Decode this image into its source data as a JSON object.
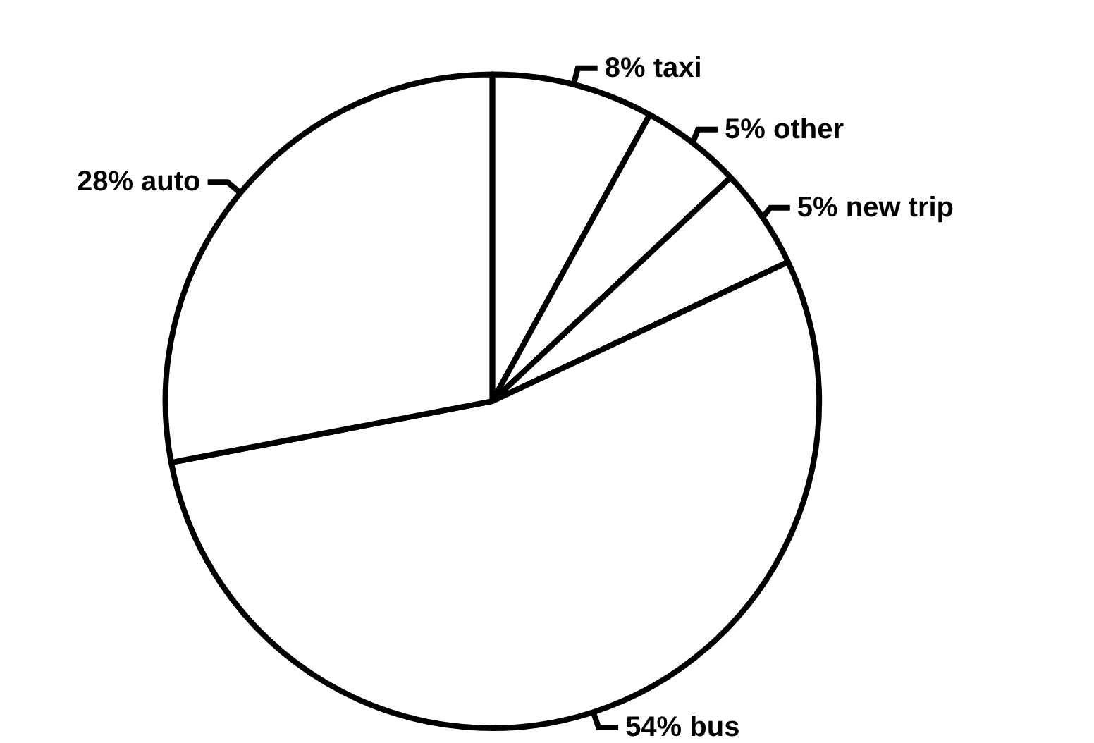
{
  "chart_data": {
    "type": "pie",
    "categories": [
      "taxi",
      "other",
      "new trip",
      "bus",
      "auto"
    ],
    "values": [
      8,
      5,
      5,
      54,
      28
    ],
    "value_labels": [
      "8%",
      "5%",
      "5%",
      "54%",
      "28%"
    ],
    "colors": [
      "#ffffff",
      "#ffffff",
      "#ffffff",
      "#ffffff",
      "#ffffff"
    ]
  }
}
